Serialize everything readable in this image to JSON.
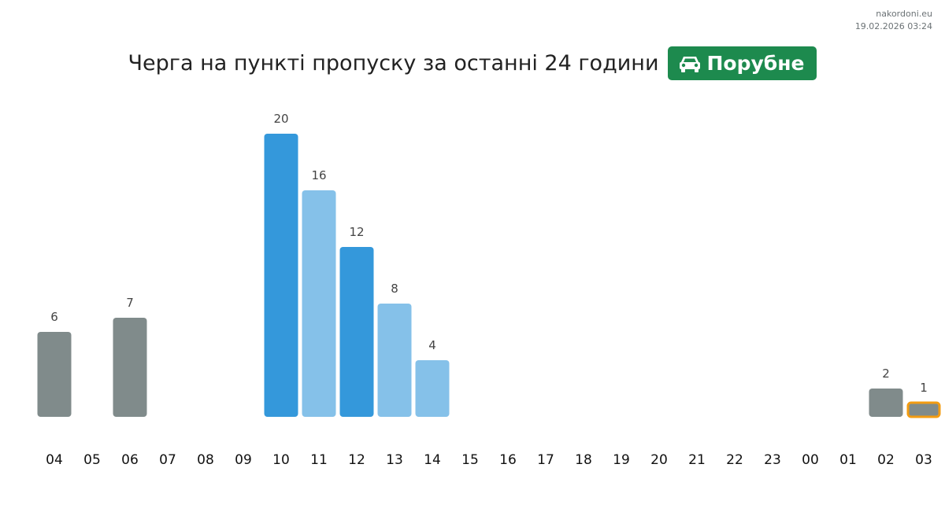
{
  "source": {
    "site": "nakordoni.eu",
    "datetime": "19.02.2026 03:24"
  },
  "header": {
    "title": "Черга на пункті пропуску за останні 24 години",
    "badge_icon": "car-icon",
    "badge_label": "Порубне",
    "badge_color": "#1d8a4e"
  },
  "chart_data": {
    "type": "bar",
    "title": "Черга на пункті пропуску за останні 24 години",
    "xlabel": "",
    "ylabel": "",
    "grid": false,
    "legend": "none",
    "categories": [
      "04",
      "05",
      "06",
      "07",
      "08",
      "09",
      "10",
      "11",
      "12",
      "13",
      "14",
      "15",
      "16",
      "17",
      "18",
      "19",
      "20",
      "21",
      "22",
      "23",
      "00",
      "01",
      "02",
      "03"
    ],
    "values": [
      6,
      null,
      7,
      null,
      null,
      null,
      20,
      16,
      12,
      8,
      4,
      null,
      null,
      null,
      null,
      null,
      null,
      null,
      null,
      null,
      null,
      null,
      2,
      1
    ],
    "ylim": [
      0,
      20
    ],
    "bar_colors": [
      "#808b8b",
      null,
      "#808b8b",
      null,
      null,
      null,
      "#3498db",
      "#85c1e9",
      "#3498db",
      "#85c1e9",
      "#85c1e9",
      null,
      null,
      null,
      null,
      null,
      null,
      null,
      null,
      null,
      null,
      null,
      "#808b8b",
      "#808b8b"
    ],
    "highlight": {
      "category": "03",
      "outline_color": "#f39c12"
    }
  }
}
